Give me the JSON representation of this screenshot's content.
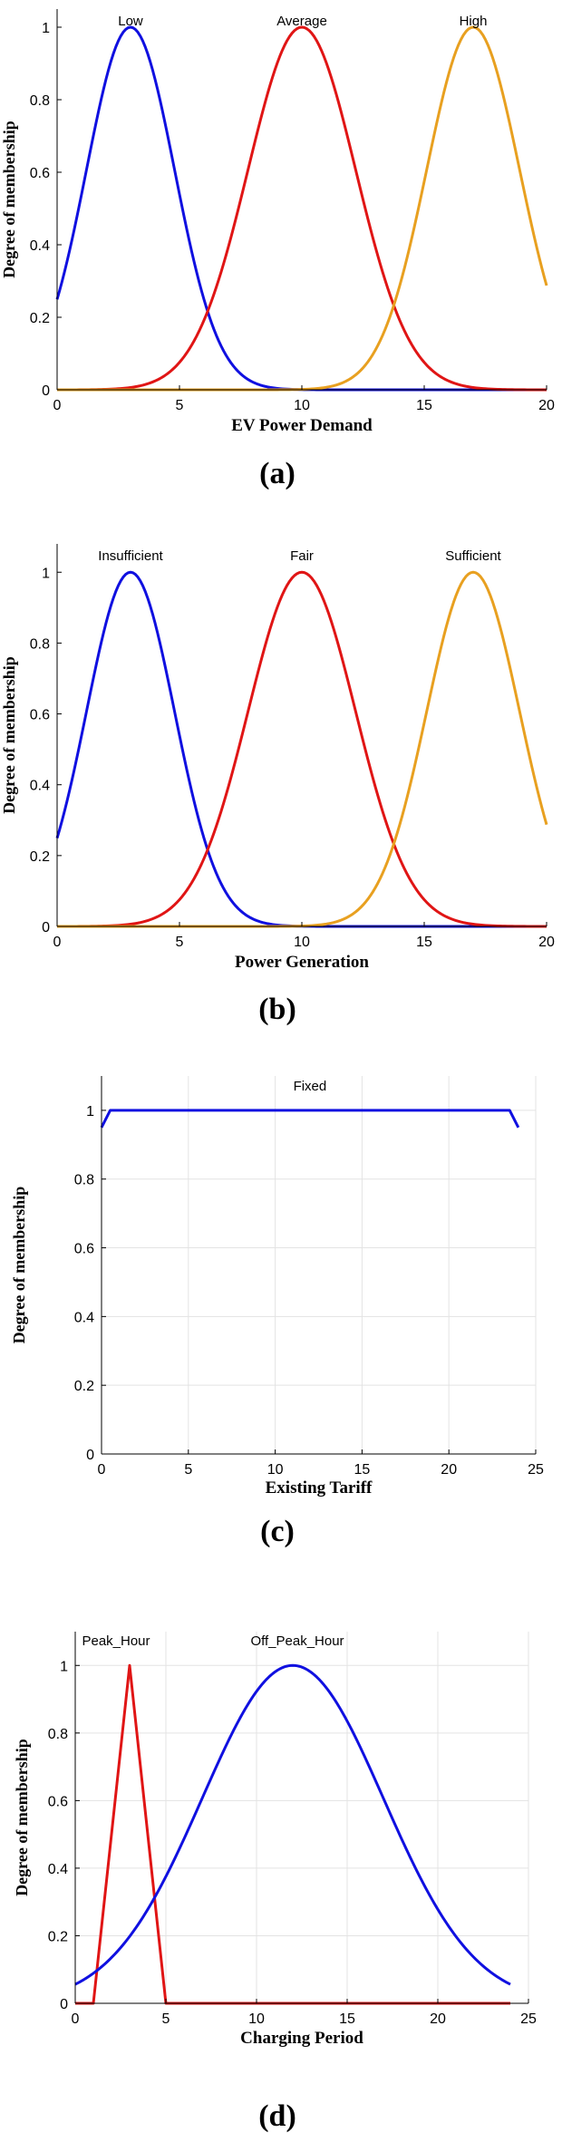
{
  "chart_data": [
    {
      "type": "line",
      "caption": "(a)",
      "xlabel": "EV Power Demand",
      "ylabel": "Degree of membership",
      "xlim": [
        0,
        20
      ],
      "ylim": [
        0,
        1.05
      ],
      "xticks": [
        0,
        5,
        10,
        15,
        20
      ],
      "yticks": [
        0,
        0.2,
        0.4,
        0.6,
        0.8,
        1
      ],
      "grid": false,
      "series": [
        {
          "name": "Low",
          "shape": "gaussian",
          "center": 3,
          "sigma": 1.8,
          "color": "#1010e0"
        },
        {
          "name": "Average",
          "shape": "gaussian",
          "center": 10,
          "sigma": 2.2,
          "color": "#e01515"
        },
        {
          "name": "High",
          "shape": "gaussian",
          "center": 17,
          "sigma": 1.9,
          "color": "#e8a020"
        }
      ]
    },
    {
      "type": "line",
      "caption": "(b)",
      "xlabel": "Power Generation",
      "ylabel": "Degree of membership",
      "xlim": [
        0,
        20
      ],
      "ylim": [
        0,
        1.08
      ],
      "xticks": [
        0,
        5,
        10,
        15,
        20
      ],
      "yticks": [
        0,
        0.2,
        0.4,
        0.6,
        0.8,
        1
      ],
      "grid": false,
      "series": [
        {
          "name": "Insufficient",
          "shape": "gaussian",
          "center": 3,
          "sigma": 1.8,
          "color": "#1010e0"
        },
        {
          "name": "Fair",
          "shape": "gaussian",
          "center": 10,
          "sigma": 2.2,
          "color": "#e01515"
        },
        {
          "name": "Sufficient",
          "shape": "gaussian",
          "center": 17,
          "sigma": 1.9,
          "color": "#e8a020"
        }
      ]
    },
    {
      "type": "line",
      "caption": "(c)",
      "xlabel": "Existing Tariff",
      "ylabel": "Degree of membership",
      "xlim": [
        0,
        25
      ],
      "ylim": [
        0,
        1.1
      ],
      "xticks": [
        0,
        5,
        10,
        15,
        20,
        25
      ],
      "yticks": [
        0,
        0.2,
        0.4,
        0.6,
        0.8,
        1
      ],
      "grid": true,
      "series": [
        {
          "name": "Fixed",
          "shape": "polyline",
          "x": [
            0,
            0.5,
            23.5,
            24
          ],
          "y": [
            0.95,
            1,
            1,
            0.95
          ],
          "color": "#1010e0"
        }
      ]
    },
    {
      "type": "line",
      "caption": "(d)",
      "xlabel": "Charging Period",
      "ylabel": "Degree of membership",
      "xlim": [
        0,
        25
      ],
      "ylim": [
        0,
        1.1
      ],
      "xticks": [
        0,
        5,
        10,
        15,
        20,
        25
      ],
      "yticks": [
        0,
        0.2,
        0.4,
        0.6,
        0.8,
        1
      ],
      "grid": true,
      "series": [
        {
          "name": "Peak_Hour",
          "shape": "polyline",
          "x": [
            0,
            1,
            3,
            5,
            24
          ],
          "y": [
            0,
            0,
            1,
            0,
            0
          ],
          "color": "#e01515"
        },
        {
          "name": "Off_Peak_Hour",
          "shape": "gaussian",
          "center": 12,
          "sigma": 5,
          "xmin": 0,
          "xmax": 24,
          "color": "#1010e0"
        }
      ]
    }
  ]
}
